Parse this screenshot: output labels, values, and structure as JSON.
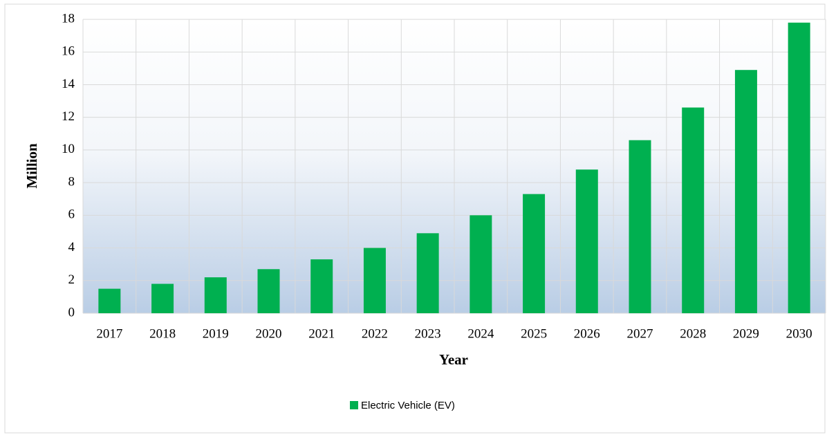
{
  "chart_data": {
    "type": "bar",
    "x_label": "Year",
    "y_label": "Million",
    "categories": [
      "2017",
      "2018",
      "2019",
      "2020",
      "2021",
      "2022",
      "2023",
      "2024",
      "2025",
      "2026",
      "2027",
      "2028",
      "2029",
      "2030"
    ],
    "series": [
      {
        "name": "Electric Vehicle (EV)",
        "color": "#00b050",
        "values": [
          1.5,
          1.8,
          2.2,
          2.7,
          3.3,
          4.0,
          4.9,
          6.0,
          7.3,
          8.8,
          10.6,
          12.6,
          14.9,
          17.8
        ]
      }
    ],
    "ylim": [
      0,
      18
    ],
    "yticks": [
      0,
      2,
      4,
      6,
      8,
      10,
      12,
      14,
      16,
      18
    ],
    "grid": true,
    "legend": "bottom"
  }
}
